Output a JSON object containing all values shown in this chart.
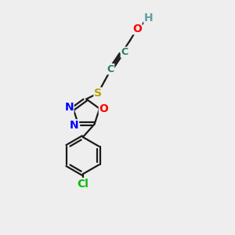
{
  "bg_color": "#eeeeee",
  "bond_color": "#1a1a1a",
  "atom_colors": {
    "H": "#5f9ea0",
    "O": "#ff0000",
    "N": "#0000ff",
    "S": "#b8a000",
    "Cl": "#00bb00",
    "C": "#2a7a6a"
  },
  "font_size": 9,
  "lw": 1.6
}
